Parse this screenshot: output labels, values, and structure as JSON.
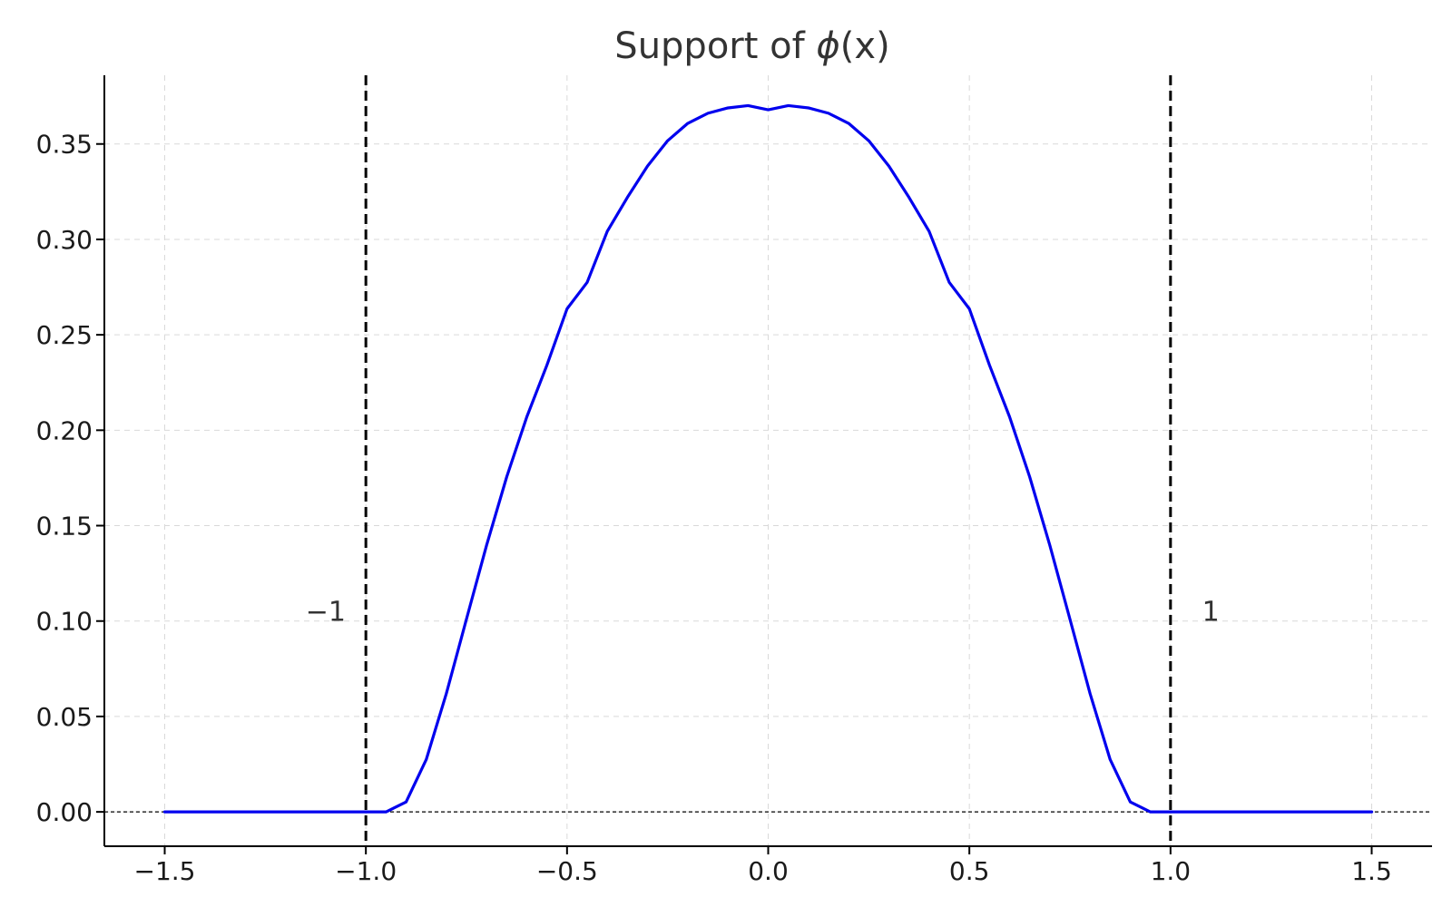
{
  "chart_data": {
    "type": "line",
    "title_text": "Support of ",
    "title_func": "ϕ",
    "title_arg": "(x)",
    "xlabel": "",
    "ylabel": "",
    "xlim": [
      -1.65,
      1.65
    ],
    "ylim": [
      -0.018,
      0.386
    ],
    "xticks": [
      -1.5,
      -1.0,
      -0.5,
      0.0,
      0.5,
      1.0,
      1.5
    ],
    "xtick_labels": [
      "−1.5",
      "−1.0",
      "−0.5",
      "0.0",
      "0.5",
      "1.0",
      "1.5"
    ],
    "yticks": [
      0.0,
      0.05,
      0.1,
      0.15,
      0.2,
      0.25,
      0.3,
      0.35
    ],
    "ytick_labels": [
      "0.00",
      "0.05",
      "0.10",
      "0.15",
      "0.20",
      "0.25",
      "0.30",
      "0.35"
    ],
    "grid": true,
    "series": [
      {
        "color": "#0000ee",
        "x": [
          -1.5,
          -1.4,
          -1.3,
          -1.2,
          -1.1,
          -1.0,
          -0.95,
          -0.9,
          -0.85,
          -0.8,
          -0.75,
          -0.7,
          -0.65,
          -0.6,
          -0.55,
          -0.5,
          -0.45,
          -0.4,
          -0.35,
          -0.3,
          -0.25,
          -0.2,
          -0.15,
          -0.1,
          -0.05,
          0.0,
          0.05,
          0.1,
          0.15,
          0.2,
          0.25,
          0.3,
          0.35,
          0.4,
          0.45,
          0.5,
          0.55,
          0.6,
          0.65,
          0.7,
          0.75,
          0.8,
          0.85,
          0.9,
          0.95,
          1.0,
          1.1,
          1.2,
          1.3,
          1.4,
          1.5
        ],
        "y": [
          0.0,
          0.0,
          0.0,
          0.0,
          0.0,
          0.0,
          0.0,
          0.0052,
          0.0274,
          0.062,
          0.101,
          0.1397,
          0.1755,
          0.207,
          0.2341,
          0.2636,
          0.2775,
          0.3042,
          0.322,
          0.3384,
          0.3517,
          0.3608,
          0.3661,
          0.3689,
          0.3701,
          0.3679,
          0.3701,
          0.3689,
          0.3661,
          0.3608,
          0.3517,
          0.3384,
          0.322,
          0.3042,
          0.2775,
          0.2636,
          0.2341,
          0.207,
          0.1755,
          0.1397,
          0.101,
          0.062,
          0.0274,
          0.0052,
          0.0,
          0.0,
          0.0,
          0.0,
          0.0,
          0.0,
          0.0
        ]
      }
    ],
    "reference_lines": [
      {
        "orientation": "vertical",
        "x": -1.0,
        "style": "dashed",
        "color": "#000000"
      },
      {
        "orientation": "vertical",
        "x": 1.0,
        "style": "dashed",
        "color": "#000000"
      },
      {
        "orientation": "horizontal",
        "y": 0.0,
        "style": "dotted",
        "color": "#000000"
      }
    ],
    "annotations": [
      {
        "text": "−1",
        "x": -1.1,
        "y": 0.1
      },
      {
        "text": "1",
        "x": 1.1,
        "y": 0.1
      }
    ]
  }
}
